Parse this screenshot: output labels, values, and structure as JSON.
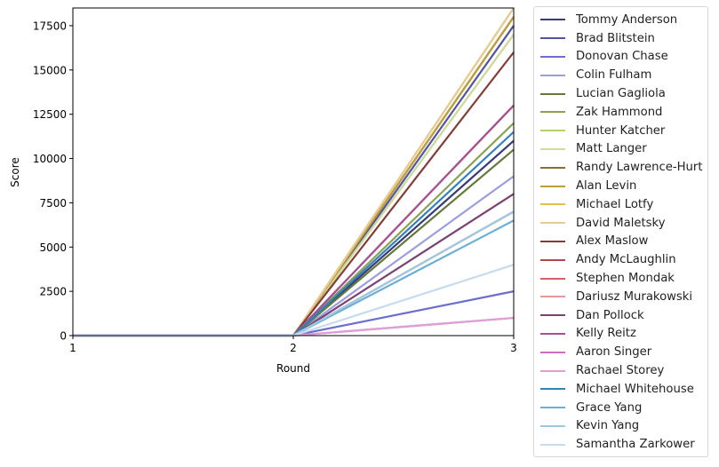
{
  "chart_data": {
    "type": "line",
    "title": "",
    "xlabel": "Round",
    "ylabel": "Score",
    "x": [
      1,
      2,
      3
    ],
    "xticks": [
      "1",
      "2",
      "3"
    ],
    "xlim": [
      1,
      3
    ],
    "yticks": [
      "0",
      "2500",
      "5000",
      "7500",
      "10000",
      "12500",
      "15000",
      "17500"
    ],
    "ytick_values": [
      0,
      2500,
      5000,
      7500,
      10000,
      12500,
      15000,
      17500
    ],
    "ylim": [
      0,
      18500
    ],
    "grid": false,
    "legend_position": "outside right",
    "series": [
      {
        "name": "Tommy Anderson",
        "color": "#393b79",
        "values": [
          0,
          0,
          11000
        ]
      },
      {
        "name": "Brad Blitstein",
        "color": "#5254a3",
        "values": [
          0,
          0,
          17500
        ]
      },
      {
        "name": "Donovan Chase",
        "color": "#6b6ecf",
        "values": [
          0,
          0,
          2500
        ]
      },
      {
        "name": "Colin Fulham",
        "color": "#9c9ede",
        "values": [
          0,
          0,
          9000
        ]
      },
      {
        "name": "Lucian Gagliola",
        "color": "#637939",
        "values": [
          0,
          0,
          10500
        ]
      },
      {
        "name": "Zak Hammond",
        "color": "#8ca252",
        "values": [
          0,
          0,
          12000
        ]
      },
      {
        "name": "Hunter Katcher",
        "color": "#b5cf6b",
        "values": [
          0,
          0,
          17000
        ]
      },
      {
        "name": "Matt Langer",
        "color": "#cedb9c",
        "values": [
          0,
          0,
          17000
        ]
      },
      {
        "name": "Randy Lawrence-Hurt",
        "color": "#8c6d31",
        "values": [
          0,
          0,
          18000
        ]
      },
      {
        "name": "Alan Levin",
        "color": "#bd9e39",
        "values": [
          0,
          0,
          18000
        ]
      },
      {
        "name": "Michael Lotfy",
        "color": "#e7ba52",
        "values": [
          0,
          0,
          18500
        ]
      },
      {
        "name": "David Maletsky",
        "color": "#e7cb94",
        "values": [
          0,
          0,
          18500
        ]
      },
      {
        "name": "Alex Maslow",
        "color": "#843c39",
        "values": [
          0,
          0,
          16000
        ]
      },
      {
        "name": "Andy McLaughlin",
        "color": "#ad494a",
        "values": [
          0,
          0,
          13000
        ]
      },
      {
        "name": "Stephen Mondak",
        "color": "#d6616b",
        "values": [
          0,
          0,
          7000
        ]
      },
      {
        "name": "Dariusz Murakowski",
        "color": "#e7969c",
        "values": [
          0,
          0,
          7000
        ]
      },
      {
        "name": "Dan Pollock",
        "color": "#7b4173",
        "values": [
          0,
          0,
          8000
        ]
      },
      {
        "name": "Kelly Reitz",
        "color": "#a55194",
        "values": [
          0,
          0,
          13000
        ]
      },
      {
        "name": "Aaron Singer",
        "color": "#ce6dbd",
        "values": [
          0,
          0,
          1000
        ]
      },
      {
        "name": "Rachael Storey",
        "color": "#de9ed6",
        "values": [
          0,
          0,
          1000
        ]
      },
      {
        "name": "Michael Whitehouse",
        "color": "#3182bd",
        "values": [
          0,
          0,
          11500
        ]
      },
      {
        "name": "Grace Yang",
        "color": "#6baed6",
        "values": [
          0,
          0,
          6500
        ]
      },
      {
        "name": "Kevin Yang",
        "color": "#9ecae1",
        "values": [
          0,
          0,
          7000
        ]
      },
      {
        "name": "Samantha Zarkower",
        "color": "#c6dbef",
        "values": [
          0,
          0,
          4000
        ]
      }
    ]
  }
}
